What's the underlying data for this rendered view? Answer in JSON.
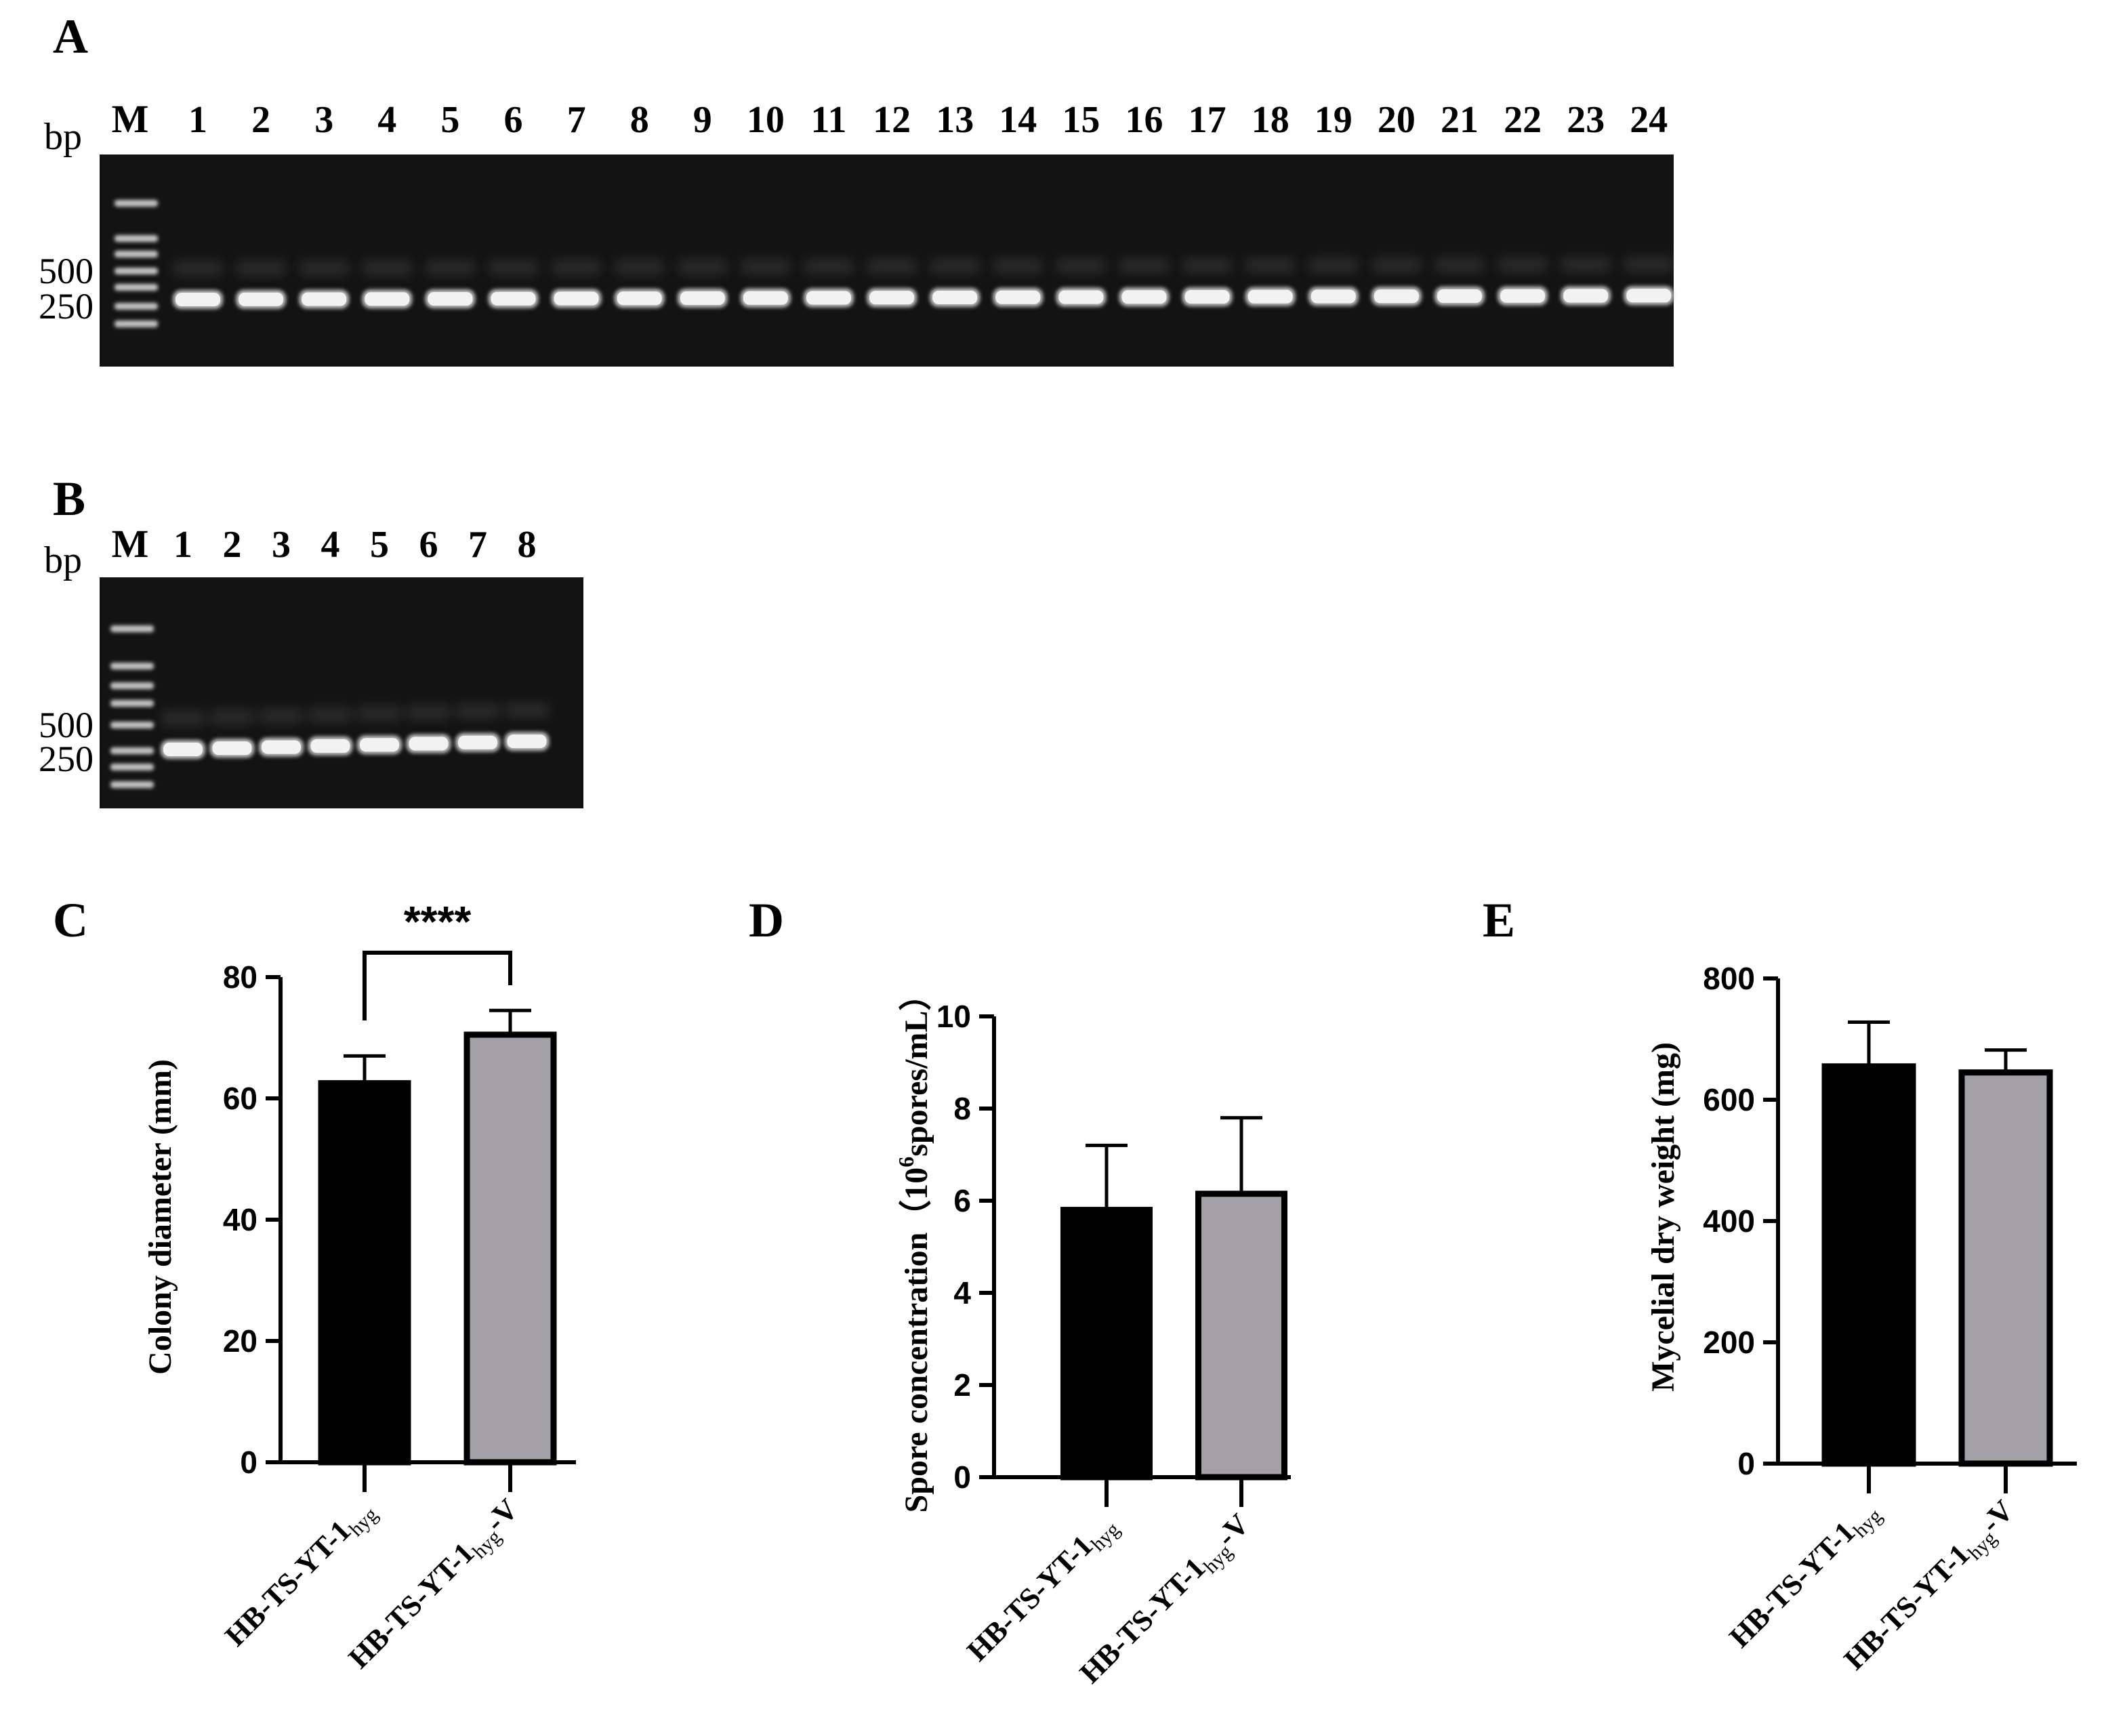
{
  "panel_labels": [
    "A",
    "B",
    "C",
    "D",
    "E"
  ],
  "gels": [
    {
      "panel": "A",
      "bp_label": "bp",
      "marker_label": "M",
      "lanes": [
        "1",
        "2",
        "3",
        "4",
        "5",
        "6",
        "7",
        "8",
        "9",
        "10",
        "11",
        "12",
        "13",
        "14",
        "15",
        "16",
        "17",
        "18",
        "19",
        "20",
        "21",
        "22",
        "23",
        "24"
      ],
      "size_labels": [
        "500",
        "250"
      ]
    },
    {
      "panel": "B",
      "bp_label": "bp",
      "marker_label": "M",
      "lanes": [
        "1",
        "2",
        "3",
        "4",
        "5",
        "6",
        "7",
        "8"
      ],
      "size_labels": [
        "500",
        "250"
      ]
    }
  ],
  "chart_data": [
    {
      "panel": "C",
      "type": "bar",
      "ylabel": "Colony diameter (mm)",
      "ylim": [
        0,
        80
      ],
      "yticks": [
        0,
        20,
        40,
        60,
        80
      ],
      "categories": [
        {
          "base": "HB-TS-YT-1",
          "sub": "hyg",
          "suffix": ""
        },
        {
          "base": "HB-TS-YT-1",
          "sub": "hyg",
          "suffix": "-V"
        }
      ],
      "values": [
        62.5,
        70.5
      ],
      "errors": [
        4.5,
        4.0
      ],
      "colors": [
        "#000000",
        "#a3a1a7"
      ],
      "significance": "****"
    },
    {
      "panel": "D",
      "type": "bar",
      "ylabel_main": "Spore concentration（10",
      "ylabel_sup": "6",
      "ylabel_end": "spores/mL）",
      "ylim": [
        0,
        10
      ],
      "yticks": [
        0,
        2,
        4,
        6,
        8,
        10
      ],
      "categories": [
        {
          "base": "HB-TS-YT-1",
          "sub": "hyg",
          "suffix": ""
        },
        {
          "base": "HB-TS-YT-1",
          "sub": "hyg",
          "suffix": "-V"
        }
      ],
      "values": [
        5.8,
        6.15
      ],
      "errors": [
        1.4,
        1.65
      ],
      "colors": [
        "#000000",
        "#a3a1a7"
      ]
    },
    {
      "panel": "E",
      "type": "bar",
      "ylabel": "Mycelial dry weight (mg)",
      "ylim": [
        0,
        800
      ],
      "yticks": [
        0,
        200,
        400,
        600,
        800
      ],
      "categories": [
        {
          "base": "HB-TS-YT-1",
          "sub": "hyg",
          "suffix": ""
        },
        {
          "base": "HB-TS-YT-1",
          "sub": "hyg",
          "suffix": "-V"
        }
      ],
      "values": [
        655,
        645
      ],
      "errors": [
        73,
        37
      ],
      "colors": [
        "#000000",
        "#a3a1a7"
      ]
    }
  ]
}
